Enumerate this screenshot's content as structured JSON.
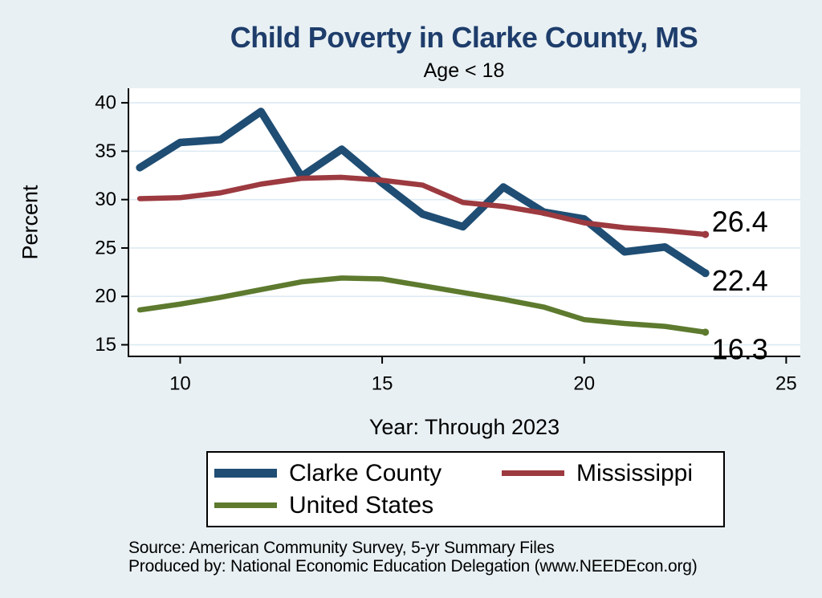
{
  "title": "Child Poverty in Clarke County, MS",
  "subtitle": "Age < 18",
  "y_axis_title": "Percent",
  "x_axis_title": "Year: Through 2023",
  "footer": {
    "source_line": "Source: American Community Survey, 5-yr Summary Files",
    "produced_line": "Produced by: National Economic Education Delegation (www.NEEDEcon.org)"
  },
  "colors": {
    "background": "#e8f0f3",
    "plot_background": "#ffffff",
    "gridline": "#dceaf2",
    "axis": "#000000",
    "title_text": "#1e3d6b",
    "clarke_county": "#1f4d73",
    "mississippi": "#9c3a40",
    "united_states": "#5d7a2e"
  },
  "legend": [
    {
      "label": "Clarke County",
      "color": "#1f4d73"
    },
    {
      "label": "Mississippi",
      "color": "#9c3a40"
    },
    {
      "label": "United States",
      "color": "#5d7a2e"
    }
  ],
  "chart_data": {
    "type": "line",
    "title": "Child Poverty in Clarke County, MS",
    "subtitle": "Age < 18",
    "xlabel": "Year: Through 2023",
    "ylabel": "Percent",
    "x": [
      9,
      10,
      11,
      12,
      13,
      14,
      15,
      16,
      17,
      18,
      19,
      20,
      21,
      22,
      23
    ],
    "series": [
      {
        "name": "Clarke County",
        "color": "#1f4d73",
        "stroke_width": 9.5,
        "values": [
          33.3,
          35.9,
          36.2,
          39.1,
          32.4,
          35.2,
          31.7,
          28.5,
          27.2,
          31.3,
          28.7,
          28.0,
          24.6,
          25.1,
          22.4
        ]
      },
      {
        "name": "Mississippi",
        "color": "#9c3a40",
        "stroke_width": 6.5,
        "values": [
          30.1,
          30.2,
          30.7,
          31.6,
          32.2,
          32.3,
          32.0,
          31.5,
          29.7,
          29.3,
          28.6,
          27.6,
          27.1,
          26.8,
          26.4
        ]
      },
      {
        "name": "United States",
        "color": "#5d7a2e",
        "stroke_width": 6.5,
        "values": [
          18.6,
          19.2,
          19.9,
          20.7,
          21.5,
          21.9,
          21.8,
          21.1,
          20.4,
          19.7,
          18.9,
          17.6,
          17.2,
          16.9,
          16.3
        ]
      }
    ],
    "end_labels": [
      {
        "series": "Mississippi",
        "text": "26.4",
        "dy": -16
      },
      {
        "series": "Clarke County",
        "text": "22.4",
        "dy": 9
      },
      {
        "series": "United States",
        "text": "16.3",
        "dy": 21
      }
    ],
    "x_ticks": [
      10,
      15,
      20,
      25
    ],
    "y_ticks": [
      15,
      20,
      25,
      30,
      35,
      40
    ],
    "xlim": [
      8.72,
      25.35
    ],
    "ylim": [
      13.8,
      41.5
    ],
    "grid": "horizontal",
    "legend_position": "bottom"
  }
}
